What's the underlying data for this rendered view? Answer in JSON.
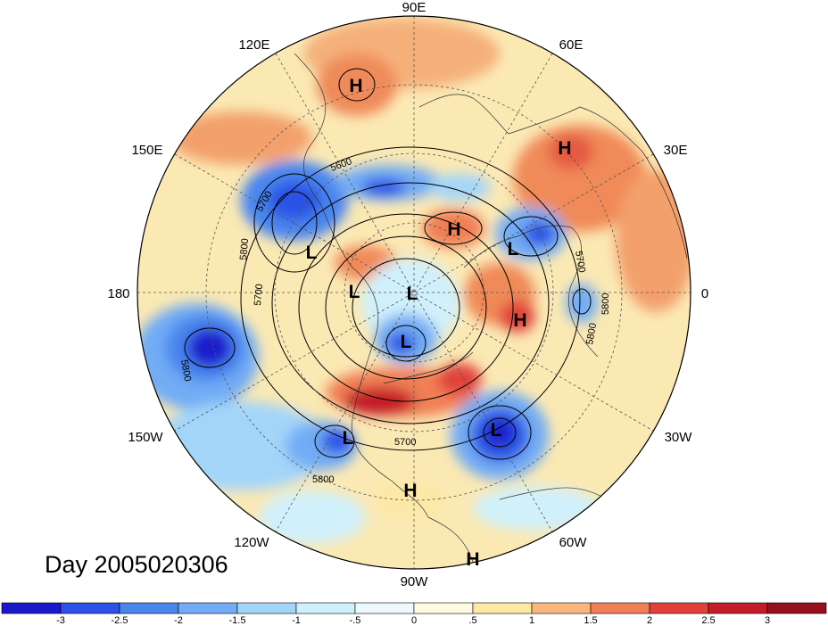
{
  "title": "Day 2005020306",
  "longitude_labels": [
    "90E",
    "60E",
    "30E",
    "0",
    "30W",
    "60W",
    "90W",
    "120W",
    "150W",
    "180",
    "150E",
    "120E"
  ],
  "pressure_systems": [
    {
      "label": "H",
      "region": "eastern Siberia"
    },
    {
      "label": "H",
      "region": "central Siberia"
    },
    {
      "label": "H",
      "region": "Ural region"
    },
    {
      "label": "H",
      "region": "North Atlantic"
    },
    {
      "label": "H",
      "region": "Gulf of Mexico"
    },
    {
      "label": "H",
      "region": "Caribbean"
    },
    {
      "label": "L",
      "region": "Kamchatka"
    },
    {
      "label": "L",
      "region": "Bering Sea"
    },
    {
      "label": "L",
      "region": "Arctic"
    },
    {
      "label": "L",
      "region": "Canadian Arctic"
    },
    {
      "label": "L",
      "region": "Scandinavia"
    },
    {
      "label": "L",
      "region": "Eastern Pacific"
    },
    {
      "label": "L",
      "region": "Central Atlantic"
    }
  ],
  "contour_labels": [
    "5600",
    "5700",
    "5800",
    "5700",
    "5800",
    "5700",
    "5800",
    "5800",
    "5700",
    "5800"
  ],
  "colorbar": {
    "ticks": [
      "-3",
      "-2.5",
      "-2",
      "-1.5",
      "-1",
      "-.5",
      "0",
      ".5",
      "1",
      "1.5",
      "2",
      "2.5",
      "3"
    ],
    "colors": [
      "#1a1acc",
      "#2c52e6",
      "#4a85ee",
      "#72acf4",
      "#a3d5f9",
      "#d0f0fb",
      "#eef9fd",
      "#fffbe0",
      "#fde8a6",
      "#f9b77d",
      "#f07f55",
      "#e0423a",
      "#c41c28",
      "#96101e"
    ]
  }
}
